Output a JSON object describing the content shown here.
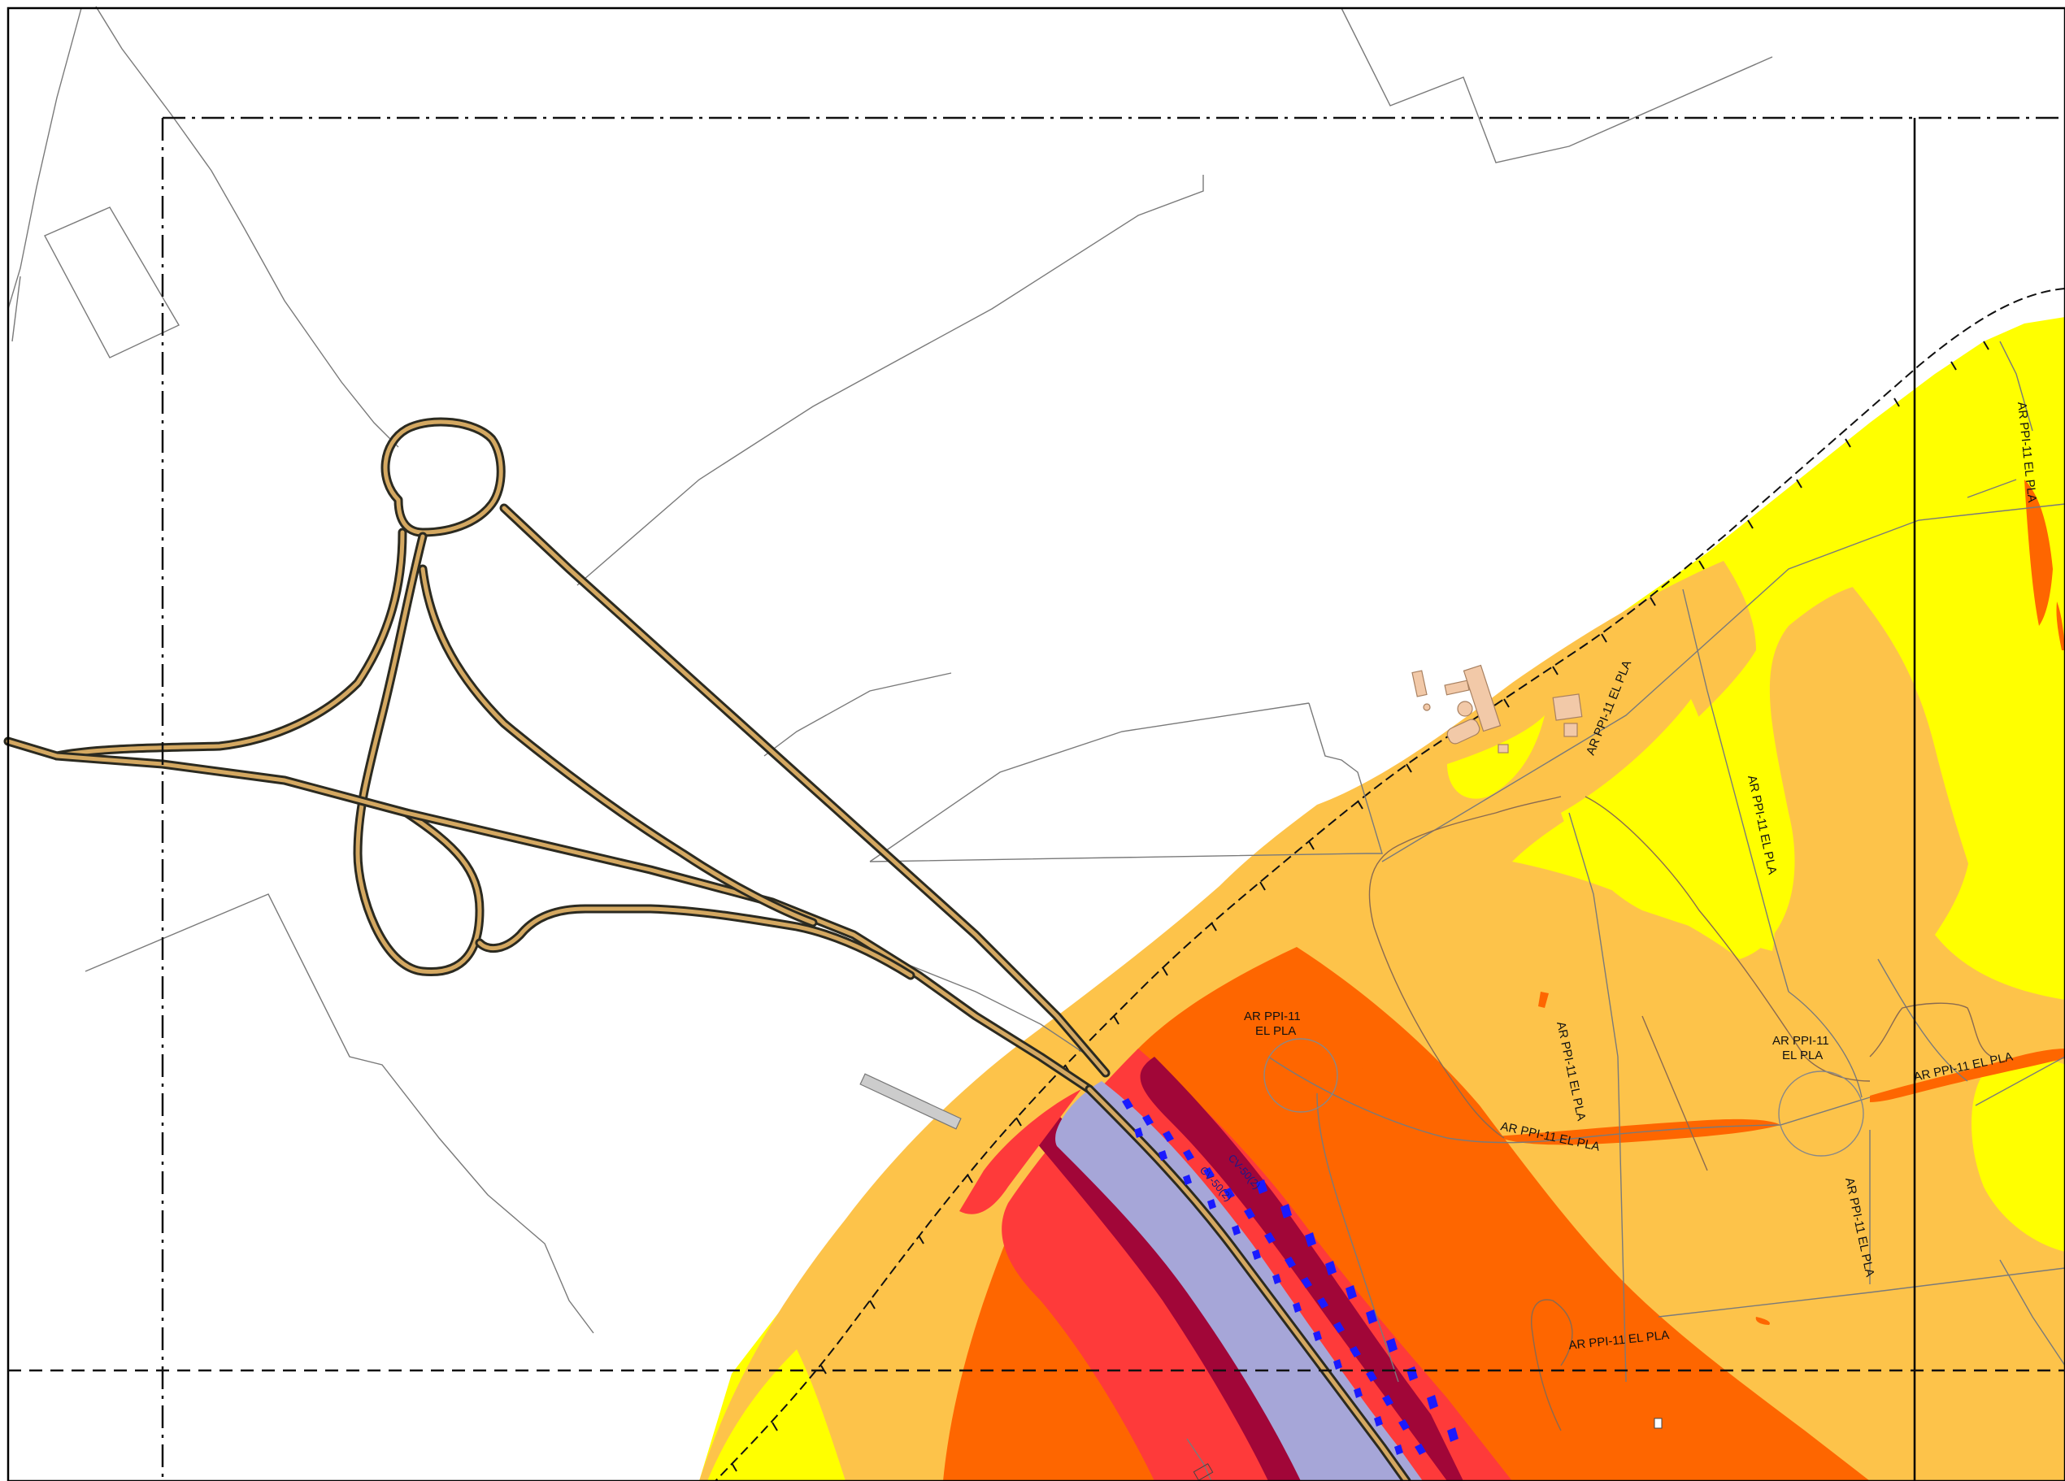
{
  "map": {
    "zone_labels": [
      "AR PPI-11 EL PLA",
      "AR PPI-11 EL PLA",
      "AR PPI-11\nEL PLA",
      "AR PPI-11 EL PLA",
      "AR PPI-11 EL PLA",
      "AR PPI-11\nEL PLA",
      "AR PPI-11 EL PLA",
      "AR PPI-11 EL PLA",
      "AR PPI-11 EL PLA",
      "AR PPI-11 EL PLA"
    ],
    "road_label_1": "CV-50(2)",
    "road_label_2": "CV-50(2)",
    "colors": {
      "yellow": "#ffff00",
      "light_orange": "#fdc34a",
      "orange": "#fe6600",
      "red": "#fe3a3a",
      "dark_red": "#a10638",
      "lavender": "#a6a6d8",
      "road_fill": "#d4a861",
      "building": "#f2c9a8"
    }
  }
}
